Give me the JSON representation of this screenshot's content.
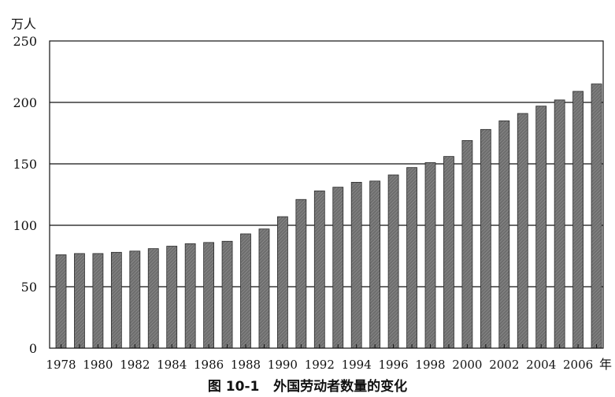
{
  "caption": "图 10-1   外国劳动者数量的变化",
  "chart_data": {
    "type": "bar",
    "title": "",
    "ylabel": "万人",
    "xlabel": "年",
    "ylim": [
      0,
      250
    ],
    "yticks": [
      0,
      50,
      100,
      150,
      200,
      250
    ],
    "grid": "horizontal",
    "bar_color": "#6e6e6e",
    "categories": [
      "1978",
      "1979",
      "1980",
      "1981",
      "1982",
      "1983",
      "1984",
      "1985",
      "1986",
      "1987",
      "1988",
      "1989",
      "1990",
      "1991",
      "1992",
      "1993",
      "1994",
      "1995",
      "1996",
      "1997",
      "1998",
      "1999",
      "2000",
      "2001",
      "2002",
      "2003",
      "2004",
      "2005",
      "2006",
      "2007"
    ],
    "x_tick_labels": [
      "1978",
      "1980",
      "1982",
      "1984",
      "1986",
      "1988",
      "1990",
      "1992",
      "1994",
      "1996",
      "1998",
      "2000",
      "2002",
      "2004",
      "2006"
    ],
    "values": [
      76,
      77,
      77,
      78,
      79,
      81,
      83,
      85,
      86,
      87,
      93,
      97,
      107,
      121,
      128,
      131,
      135,
      136,
      141,
      147,
      151,
      156,
      169,
      178,
      185,
      191,
      197,
      202,
      209,
      215
    ]
  }
}
